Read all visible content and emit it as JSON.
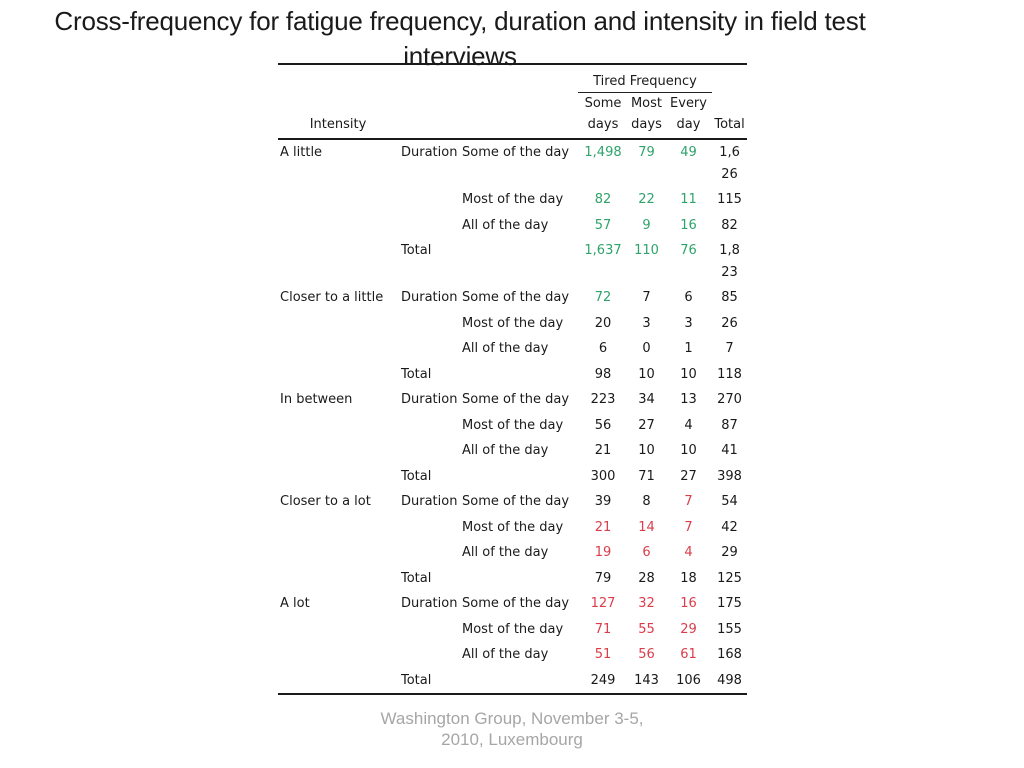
{
  "title": "Cross-frequency for fatigue frequency, duration and intensity in field test interviews",
  "footer": "Washington Group, November 3-5, 2010, Luxembourg",
  "colors": {
    "g": "#2FA36B",
    "r": "#DC3C4A",
    "b": "#1A1A1A"
  },
  "table": {
    "group_header": "Tired Frequency",
    "intensity_header": "Intensity",
    "col_headers": [
      "Some days",
      "Most days",
      "Every day",
      "Total"
    ],
    "duration_label": "Duration",
    "total_label": "Total",
    "sections": [
      {
        "intensity": "A little",
        "rows": [
          {
            "c2": "Duration",
            "c3": "Some of the day",
            "v": [
              "1,498",
              "79",
              "49",
              "1,626"
            ],
            "k": [
              "g",
              "g",
              "g",
              "b"
            ]
          },
          {
            "c2": "",
            "c3": "Most of the day",
            "v": [
              "82",
              "22",
              "11",
              "115"
            ],
            "k": [
              "g",
              "g",
              "g",
              "b"
            ]
          },
          {
            "c2": "",
            "c3": "All of the day",
            "v": [
              "57",
              "9",
              "16",
              "82"
            ],
            "k": [
              "g",
              "g",
              "g",
              "b"
            ]
          },
          {
            "c2": "Total",
            "c3": "",
            "v": [
              "1,637",
              "110",
              "76",
              "1,823"
            ],
            "k": [
              "g",
              "g",
              "g",
              "b"
            ]
          }
        ]
      },
      {
        "intensity": "Closer to a little",
        "rows": [
          {
            "c2": "Duration",
            "c3": "Some of the day",
            "v": [
              "72",
              "7",
              "6",
              "85"
            ],
            "k": [
              "g",
              "b",
              "b",
              "b"
            ]
          },
          {
            "c2": "",
            "c3": "Most of the day",
            "v": [
              "20",
              "3",
              "3",
              "26"
            ],
            "k": [
              "b",
              "b",
              "b",
              "b"
            ]
          },
          {
            "c2": "",
            "c3": "All of the day",
            "v": [
              "6",
              "0",
              "1",
              "7"
            ],
            "k": [
              "b",
              "b",
              "b",
              "b"
            ]
          },
          {
            "c2": "Total",
            "c3": "",
            "v": [
              "98",
              "10",
              "10",
              "118"
            ],
            "k": [
              "b",
              "b",
              "b",
              "b"
            ]
          }
        ]
      },
      {
        "intensity": "In between",
        "rows": [
          {
            "c2": "Duration",
            "c3": "Some of the day",
            "v": [
              "223",
              "34",
              "13",
              "270"
            ],
            "k": [
              "b",
              "b",
              "b",
              "b"
            ]
          },
          {
            "c2": "",
            "c3": "Most of the day",
            "v": [
              "56",
              "27",
              "4",
              "87"
            ],
            "k": [
              "b",
              "b",
              "b",
              "b"
            ]
          },
          {
            "c2": "",
            "c3": "All of the day",
            "v": [
              "21",
              "10",
              "10",
              "41"
            ],
            "k": [
              "b",
              "b",
              "b",
              "b"
            ]
          },
          {
            "c2": "Total",
            "c3": "",
            "v": [
              "300",
              "71",
              "27",
              "398"
            ],
            "k": [
              "b",
              "b",
              "b",
              "b"
            ]
          }
        ]
      },
      {
        "intensity": "Closer to a lot",
        "rows": [
          {
            "c2": "Duration",
            "c3": "Some of the day",
            "v": [
              "39",
              "8",
              "7",
              "54"
            ],
            "k": [
              "b",
              "b",
              "r",
              "b"
            ]
          },
          {
            "c2": "",
            "c3": "Most of the day",
            "v": [
              "21",
              "14",
              "7",
              "42"
            ],
            "k": [
              "r",
              "r",
              "r",
              "b"
            ]
          },
          {
            "c2": "",
            "c3": "All of the day",
            "v": [
              "19",
              "6",
              "4",
              "29"
            ],
            "k": [
              "r",
              "r",
              "r",
              "b"
            ]
          },
          {
            "c2": "Total",
            "c3": "",
            "v": [
              "79",
              "28",
              "18",
              "125"
            ],
            "k": [
              "b",
              "b",
              "b",
              "b"
            ]
          }
        ]
      },
      {
        "intensity": "A lot",
        "rows": [
          {
            "c2": "Duration",
            "c3": "Some of the day",
            "v": [
              "127",
              "32",
              "16",
              "175"
            ],
            "k": [
              "r",
              "r",
              "r",
              "b"
            ]
          },
          {
            "c2": "",
            "c3": "Most of the day",
            "v": [
              "71",
              "55",
              "29",
              "155"
            ],
            "k": [
              "r",
              "r",
              "r",
              "b"
            ]
          },
          {
            "c2": "",
            "c3": "All of the day",
            "v": [
              "51",
              "56",
              "61",
              "168"
            ],
            "k": [
              "r",
              "r",
              "r",
              "b"
            ]
          },
          {
            "c2": "Total",
            "c3": "",
            "v": [
              "249",
              "143",
              "106",
              "498"
            ],
            "k": [
              "b",
              "b",
              "b",
              "b"
            ]
          }
        ]
      }
    ]
  }
}
